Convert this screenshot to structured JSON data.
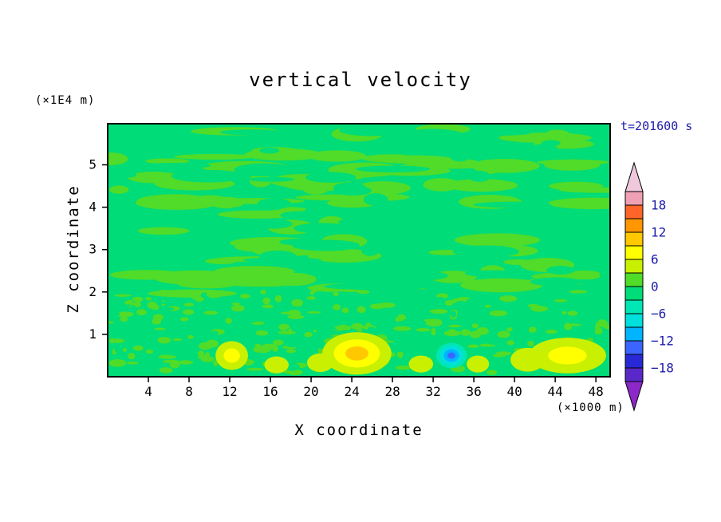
{
  "colors": {
    "background": "#ffffff",
    "text": "#000000",
    "annotation": "#1c1caa",
    "frame": "#000000"
  },
  "chart_data": {
    "type": "heatmap",
    "title": "vertical velocity",
    "timestamp": "t=201600 s",
    "xlabel": "X coordinate",
    "x_unit": "(×1000 m)",
    "ylabel": "Z coordinate",
    "y_unit": "(×1E4 m)",
    "xlim": [
      0,
      49.4
    ],
    "ylim": [
      0,
      5.97
    ],
    "x_ticks": [
      4,
      8,
      12,
      16,
      20,
      24,
      28,
      32,
      36,
      40,
      44,
      48
    ],
    "y_ticks": [
      1,
      2,
      3,
      4,
      5
    ],
    "grid": false,
    "colorbar": {
      "position": "right",
      "max": 21,
      "min": -21,
      "step": 3,
      "labeled_levels": [
        "18",
        "12",
        "6",
        "0",
        "−6",
        "−12",
        "−18"
      ],
      "label_values": [
        18,
        12,
        6,
        0,
        -6,
        -12,
        -18
      ],
      "colors_top_to_bottom": [
        "#f0c8dc",
        "#f0a0b4",
        "#ff6428",
        "#ff9600",
        "#ffc800",
        "#ffff00",
        "#c8f000",
        "#50dc28",
        "#00dc78",
        "#00e6b4",
        "#00e0dc",
        "#00b4ff",
        "#3c64ff",
        "#2828d7",
        "#5a28c8",
        "#8c28c8"
      ]
    },
    "field_summary": {
      "background_band": "-3 to 0",
      "mottle_band": "0 to 3",
      "description": "Near-zero vertical velocity (green, mottled 0 to ±3 bands) over most of the domain; shallow positive maxima (6 to 9+) near the surface around x=24.5 and x=45, smaller positive spots near x=12, 17, 21, 31, 36, 41, and a compact negative minimum (−12 to −15, blue) near the surface around x=34."
    },
    "features": [
      {
        "x": 24.5,
        "z": 0.55,
        "rx": 3.4,
        "rz": 0.5,
        "levels": [
          3,
          6,
          9
        ]
      },
      {
        "x": 45.2,
        "z": 0.5,
        "rx": 3.8,
        "rz": 0.42,
        "levels": [
          3,
          6
        ]
      },
      {
        "x": 41.3,
        "z": 0.4,
        "rx": 1.7,
        "rz": 0.28,
        "levels": [
          3
        ]
      },
      {
        "x": 33.8,
        "z": 0.5,
        "rx": 1.5,
        "rz": 0.3,
        "levels": [
          -6,
          -9,
          -12,
          -15
        ]
      },
      {
        "x": 12.2,
        "z": 0.5,
        "rx": 1.6,
        "rz": 0.34,
        "levels": [
          3,
          6
        ]
      },
      {
        "x": 16.6,
        "z": 0.28,
        "rx": 1.2,
        "rz": 0.2,
        "levels": [
          3
        ]
      },
      {
        "x": 20.9,
        "z": 0.33,
        "rx": 1.3,
        "rz": 0.22,
        "levels": [
          3
        ]
      },
      {
        "x": 30.8,
        "z": 0.3,
        "rx": 1.2,
        "rz": 0.2,
        "levels": [
          3
        ]
      },
      {
        "x": 36.4,
        "z": 0.3,
        "rx": 1.1,
        "rz": 0.2,
        "levels": [
          3
        ]
      }
    ]
  }
}
